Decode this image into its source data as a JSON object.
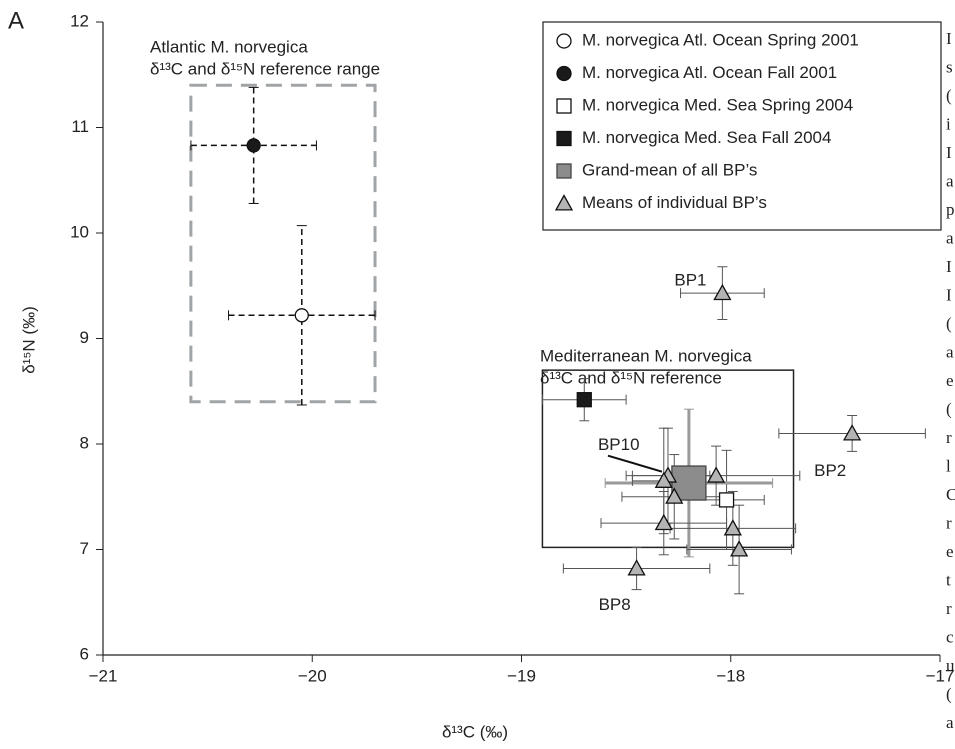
{
  "chart_data": {
    "type": "scatter",
    "panel": "A",
    "xlabel": "δ¹³C (‰)",
    "ylabel": "δ¹⁵N (‰)",
    "xlim": [
      -21,
      -17
    ],
    "ylim": [
      6,
      12
    ],
    "xticks": [
      {
        "value": -21,
        "label": "−21"
      },
      {
        "value": -20,
        "label": "−20"
      },
      {
        "value": -19,
        "label": "−19"
      },
      {
        "value": -18,
        "label": "−18"
      },
      {
        "value": -17,
        "label": "−17"
      }
    ],
    "yticks": [
      6,
      7,
      8,
      9,
      10,
      11,
      12
    ],
    "reference_boxes": [
      {
        "label_lines": [
          "Atlantic M. norvegica",
          "δ¹³C  and  δ¹⁵N  reference range"
        ],
        "x_range": [
          -20.58,
          -19.7
        ],
        "y_range": [
          8.4,
          11.4
        ],
        "color": "#a0a4a6",
        "style": "dashed"
      },
      {
        "label_lines": [
          "Mediterranean M. norvegica",
          "δ¹³C  and  δ¹⁵N  reference"
        ],
        "x_range": [
          -18.9,
          -17.7
        ],
        "y_range": [
          7.02,
          8.7
        ],
        "color": "#222222",
        "style": "solid"
      }
    ],
    "series": [
      {
        "name": "M. norvegica Atl. Ocean Spring 2001",
        "marker": "circle",
        "color": "#ffffff",
        "x": [
          -20.05
        ],
        "values": [
          9.22
        ],
        "xerr": [
          0.35
        ],
        "yerr": [
          0.85
        ]
      },
      {
        "name": "M. norvegica Atl. Ocean Fall 2001",
        "marker": "circle",
        "color": "#1a1a1a",
        "x": [
          -20.28
        ],
        "values": [
          10.83
        ],
        "xerr": [
          0.3
        ],
        "yerr": [
          0.55
        ]
      },
      {
        "name": "M. norvegica Med. Sea Spring 2004",
        "marker": "square",
        "color": "#ffffff",
        "x": [
          -18.02
        ],
        "values": [
          7.47
        ],
        "xerr": [
          0.18
        ],
        "yerr": [
          0.47
        ]
      },
      {
        "name": "M. norvegica Med. Sea Fall 2004",
        "marker": "square",
        "color": "#1a1a1a",
        "x": [
          -18.7
        ],
        "values": [
          8.42
        ],
        "xerr": [
          0.2
        ],
        "yerr": [
          0.2
        ]
      },
      {
        "name": "Grand-mean of all BP’s",
        "marker": "bigsquare",
        "color": "#8c8c8c",
        "x": [
          -18.2
        ],
        "values": [
          7.63
        ],
        "xerr": [
          0.4
        ],
        "yerr": [
          0.7
        ]
      },
      {
        "name": "Means of individual BP’s",
        "marker": "triangle",
        "color": "#b4b4b4",
        "x": [
          -18.04,
          -17.42,
          -18.45,
          -18.3,
          -18.32,
          -18.07,
          -18.27,
          -18.32,
          -17.99,
          -17.96
        ],
        "values": [
          9.43,
          8.1,
          6.82,
          7.7,
          7.65,
          7.7,
          7.5,
          7.25,
          7.2,
          7.0
        ],
        "xerr": [
          0.2,
          0.35,
          0.35,
          0.2,
          0.15,
          0.4,
          0.25,
          0.3,
          0.3,
          0.25
        ],
        "yerr": [
          0.25,
          0.17,
          0.2,
          0.45,
          0.5,
          0.28,
          0.4,
          0.3,
          0.35,
          0.42
        ],
        "point_labels": [
          "BP1",
          "BP2",
          "BP8",
          "BP10",
          null,
          null,
          null,
          null,
          null,
          null
        ]
      }
    ],
    "side_text": [
      "I",
      "s",
      "(",
      "i",
      "I",
      "a",
      "p",
      "a",
      "I",
      "I",
      "(",
      "a",
      "e",
      "(",
      "r",
      "l",
      "C",
      "r",
      "e",
      "t",
      "r",
      "c",
      "u",
      "(",
      "a"
    ]
  }
}
